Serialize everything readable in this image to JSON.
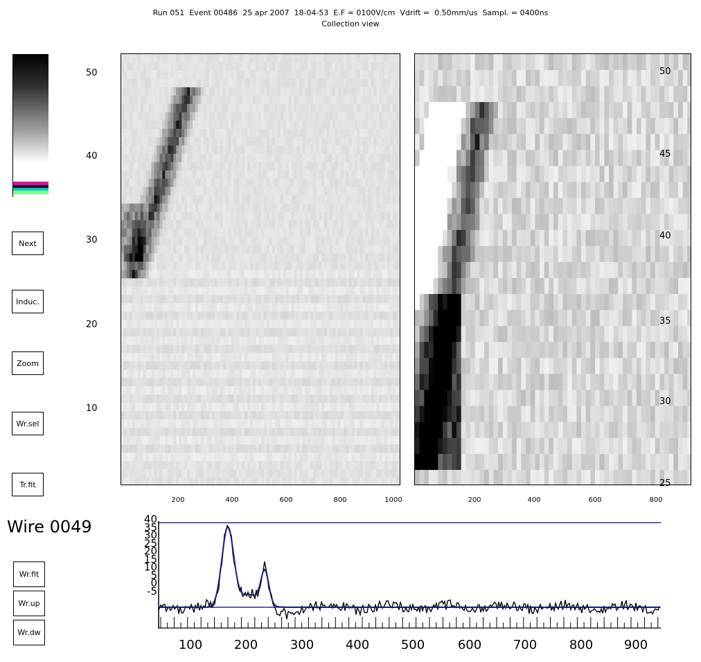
{
  "header": {
    "line1": "Run 051  Event 00486  25 apr 2007  18-04-53  E.F = 0100V/cm  Vdrift =  0.50mm/us  Sampl. = 0400ns",
    "line2": "Collection view"
  },
  "buttons": {
    "next": "Next",
    "induc": "Induc.",
    "zoom": "Zoom",
    "wrsel": "Wr.sel",
    "trfit": "Tr.fit",
    "wrfit": "Wr.fit",
    "wrup": "Wr.up",
    "wrdw": "Wr.dw"
  },
  "wire_label": "Wire 0049",
  "left_view": {
    "y_ticks": [
      "50",
      "40",
      "30",
      "20",
      "10"
    ],
    "x_ticks": [
      "200",
      "400",
      "600",
      "800",
      "1000"
    ]
  },
  "right_view": {
    "y_ticks": [
      "50",
      "45",
      "40",
      "35",
      "30",
      "25"
    ],
    "x_ticks": [
      "200",
      "400",
      "600",
      "800"
    ]
  },
  "waveform": {
    "y_ticks": [
      "40",
      "35",
      "30",
      "25",
      "20",
      "15",
      "10",
      "5",
      "0",
      "-5"
    ],
    "x_ticks": [
      "100",
      "200",
      "300",
      "400",
      "500",
      "600",
      "700",
      "800",
      "900"
    ]
  },
  "colors": {
    "trace": "#1a1a7a",
    "baseline": "#2b2b8c",
    "colorbar_magenta": "#c8108c",
    "colorbar_cyan": "#00c8c8",
    "colorbar_green": "#80ff80"
  }
}
